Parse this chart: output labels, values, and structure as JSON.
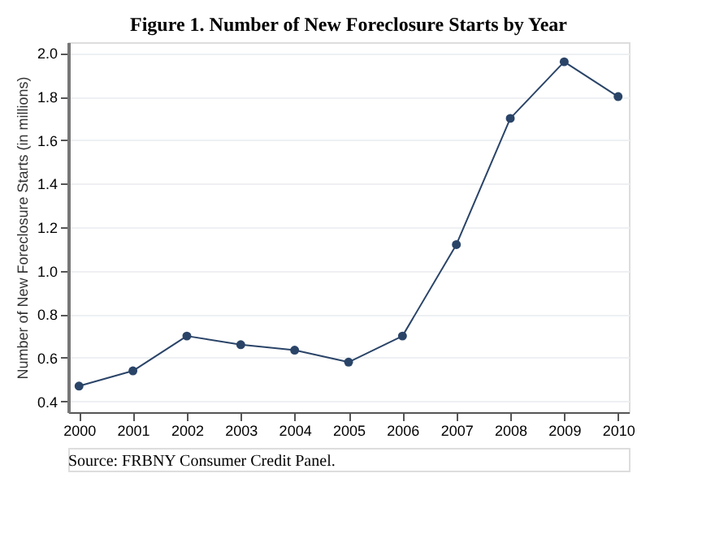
{
  "chart_data": {
    "type": "line",
    "title": "Figure 1. Number of New Foreclosure Starts by Year",
    "ylabel": "Number of New Foreclosure Starts (in millions)",
    "x": [
      2000,
      2001,
      2002,
      2003,
      2004,
      2005,
      2006,
      2007,
      2008,
      2009,
      2010
    ],
    "series": [
      {
        "color": "#2a4468",
        "values": [
          0.47,
          0.54,
          0.7,
          0.66,
          0.635,
          0.58,
          0.7,
          1.12,
          1.7,
          1.96,
          1.8
        ]
      }
    ],
    "xlim": [
      1999.8,
      2010.2
    ],
    "xticks": [
      2000,
      2001,
      2002,
      2003,
      2004,
      2005,
      2006,
      2007,
      2008,
      2009,
      2010
    ],
    "ylim": [
      0.35,
      2.05
    ],
    "yticks": [
      0.4,
      0.6,
      0.8,
      {
        "value": 1,
        "label": "1.0"
      },
      1.2,
      1.4,
      1.6,
      1.8,
      {
        "value": 2,
        "label": "2.0"
      }
    ],
    "grid": "y",
    "marker": "circle",
    "line_style": "solid",
    "annotations": [
      "Source: FRBNY Consumer Credit Panel."
    ]
  }
}
